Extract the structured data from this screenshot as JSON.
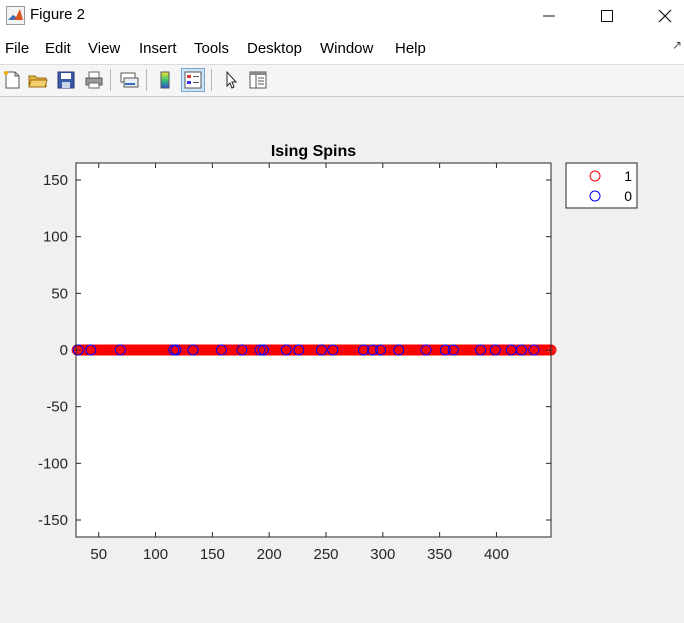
{
  "window": {
    "title": "Figure 2",
    "minimize_icon": "minimize-icon",
    "maximize_icon": "maximize-icon",
    "close_icon": "close-icon"
  },
  "menu": [
    "File",
    "Edit",
    "View",
    "Insert",
    "Tools",
    "Desktop",
    "Window",
    "Help"
  ],
  "toolbar": [
    "new-figure-icon",
    "open-file-icon",
    "save-icon",
    "print-icon",
    "link-plot-icon",
    "colorbar-icon",
    "legend-icon",
    "pointer-icon",
    "property-editor-icon"
  ],
  "colors": {
    "series1": "#ff0000",
    "series0": "#0000ff",
    "axes_bg": "#ffffff",
    "figure_bg": "#f0f0f0"
  },
  "chart_data": {
    "type": "scatter",
    "title": "Ising Spins",
    "xlabel": "",
    "ylabel": "",
    "xlim": [
      30,
      448
    ],
    "ylim": [
      -165,
      165
    ],
    "xticks": [
      50,
      100,
      150,
      200,
      250,
      300,
      350,
      400
    ],
    "yticks": [
      -150,
      -100,
      -50,
      0,
      50,
      100,
      150
    ],
    "grid": false,
    "legend": {
      "placement": "outside-top-right",
      "entries": [
        "1",
        "0"
      ]
    },
    "series": [
      {
        "name": "1",
        "marker": "circle",
        "color": "#ff0000",
        "y": 0,
        "x_range": [
          31,
          448
        ],
        "x_step": 1
      },
      {
        "name": "0",
        "marker": "circle",
        "color": "#0000ff",
        "y": 0,
        "x": [
          32,
          43,
          69,
          116,
          118,
          133,
          158,
          176,
          192,
          195,
          215,
          226,
          246,
          256,
          283,
          291,
          298,
          314,
          338,
          355,
          362,
          386,
          399,
          413,
          422,
          433
        ]
      }
    ]
  }
}
